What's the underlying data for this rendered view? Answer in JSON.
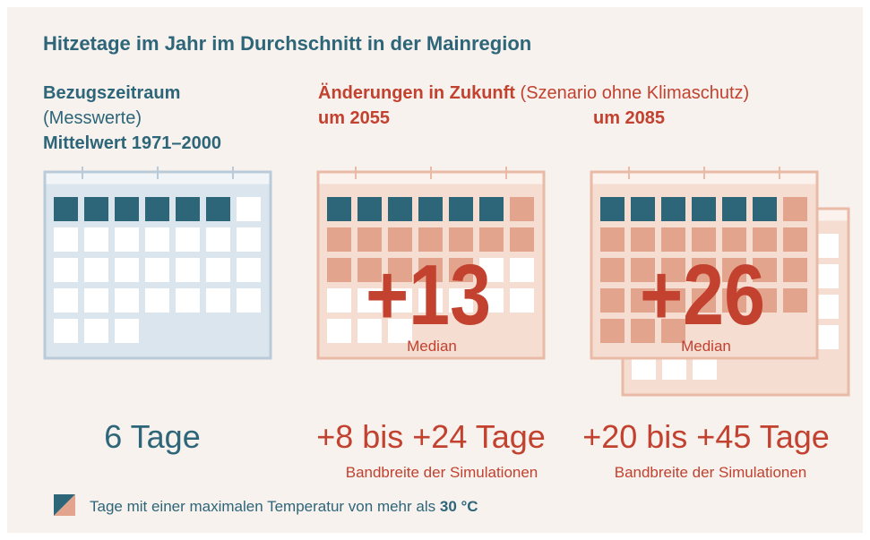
{
  "title": "Hitzetage im Jahr im Durchschnitt in der Mainregion",
  "reference": {
    "heading": "Bezugszeitraum",
    "subheading": "(Messwerte)",
    "period": "Mittelwert 1971–2000",
    "value": "6 Tage"
  },
  "future": {
    "heading": "Änderungen in Zukunft",
    "subheading": "(Szenario ohne Klimaschutz)",
    "panels": [
      {
        "period": "um 2055",
        "median": "+13",
        "median_label": "Median",
        "range": "+8 bis +24 Tage",
        "range_label": "Bandbreite der Simulationen"
      },
      {
        "period": "um 2085",
        "median": "+26",
        "median_label": "Median",
        "range": "+20 bis +45 Tage",
        "range_label": "Bandbreite der Simulationen"
      }
    ]
  },
  "legend": {
    "text": "Tage mit einer maximalen Temperatur von mehr als",
    "threshold": "30 °C"
  }
}
